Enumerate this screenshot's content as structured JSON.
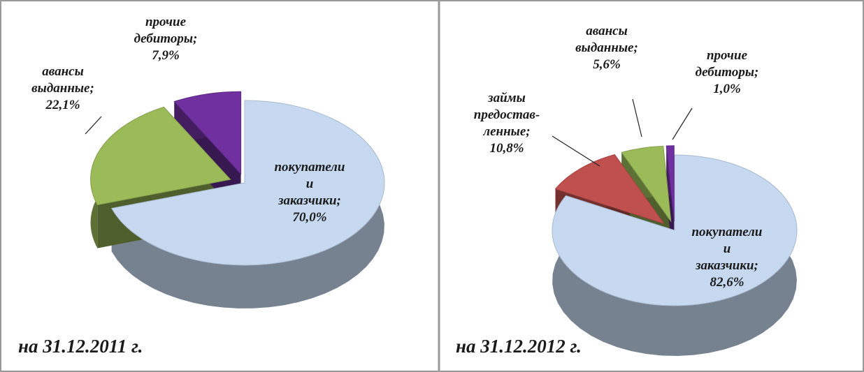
{
  "chart_data": [
    {
      "type": "pie",
      "title": "на 31.12.2011 г.",
      "categories": [
        "покупатели и заказчики;",
        "авансы выданные;",
        "прочие дебиторы;"
      ],
      "values": [
        70.0,
        22.1,
        7.9
      ],
      "value_labels": [
        "70,0%",
        "22,1%",
        "7,9%"
      ],
      "colors": [
        "#c6d9f1",
        "#9bbb59",
        "#7030a0"
      ]
    },
    {
      "type": "pie",
      "title": "на 31.12.2012 г.",
      "categories": [
        "покупатели и заказчики;",
        "займы предостав-ленные;",
        "авансы выданные;",
        "прочие дебиторы;"
      ],
      "values": [
        82.6,
        10.8,
        5.6,
        1.0
      ],
      "value_labels": [
        "82,6%",
        "10,8%",
        "5,6%",
        "1,0%"
      ],
      "colors": [
        "#c6d9f1",
        "#c0504d",
        "#9bbb59",
        "#7030a0"
      ]
    }
  ]
}
